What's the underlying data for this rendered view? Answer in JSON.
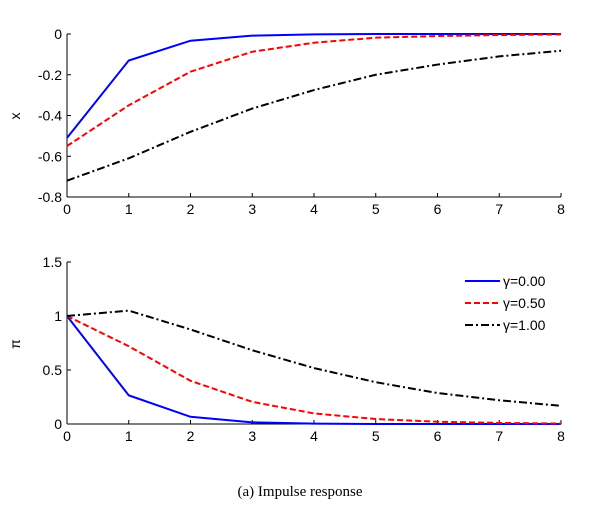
{
  "caption": "(a) Impulse response",
  "chart_data": [
    {
      "type": "line",
      "title": "",
      "xlabel": "",
      "ylabel": "x",
      "xlim": [
        0,
        8
      ],
      "ylim": [
        -0.8,
        0
      ],
      "xticks": [
        0,
        1,
        2,
        3,
        4,
        5,
        6,
        7,
        8
      ],
      "yticks": [
        0,
        -0.2,
        -0.4,
        -0.6,
        -0.8
      ],
      "ytick_labels": [
        "0",
        "-0.2",
        "-0.4",
        "-0.6",
        "-0.8"
      ],
      "grid": false,
      "x": [
        0,
        1,
        2,
        3,
        4,
        5,
        6,
        7,
        8
      ],
      "series": [
        {
          "values": [
            -0.51,
            -0.13,
            -0.033,
            -0.008,
            -0.002,
            0,
            0,
            0,
            0
          ],
          "color": "#0000ff",
          "style": "solid"
        },
        {
          "values": [
            -0.55,
            -0.35,
            -0.185,
            -0.087,
            -0.043,
            -0.018,
            -0.01,
            -0.005,
            -0.002
          ],
          "color": "#ff0000",
          "style": "dashed"
        },
        {
          "values": [
            -0.72,
            -0.61,
            -0.48,
            -0.366,
            -0.275,
            -0.2,
            -0.15,
            -0.11,
            -0.082
          ],
          "color": "#000000",
          "style": "dashdot"
        }
      ]
    },
    {
      "type": "line",
      "title": "",
      "xlabel": "",
      "ylabel": "π",
      "xlim": [
        0,
        8
      ],
      "ylim": [
        0,
        1.5
      ],
      "xticks": [
        0,
        1,
        2,
        3,
        4,
        5,
        6,
        7,
        8
      ],
      "yticks": [
        0,
        0.5,
        1,
        1.5
      ],
      "ytick_labels": [
        "0",
        "0.5",
        "1",
        "1.5"
      ],
      "grid": false,
      "legend_position": "top-right",
      "x": [
        0,
        1,
        2,
        3,
        4,
        5,
        6,
        7,
        8
      ],
      "series": [
        {
          "name": "γ=0.00",
          "values": [
            1,
            0.265,
            0.067,
            0.015,
            0.004,
            0,
            0,
            0,
            0
          ],
          "color": "#0000ff",
          "style": "solid"
        },
        {
          "name": "γ=0.50",
          "values": [
            1,
            0.72,
            0.4,
            0.205,
            0.098,
            0.046,
            0.021,
            0.01,
            0.004
          ],
          "color": "#ff0000",
          "style": "dashed"
        },
        {
          "name": "γ=1.00",
          "values": [
            1,
            1.05,
            0.875,
            0.683,
            0.518,
            0.387,
            0.287,
            0.22,
            0.168
          ],
          "color": "#000000",
          "style": "dashdot"
        }
      ]
    }
  ]
}
